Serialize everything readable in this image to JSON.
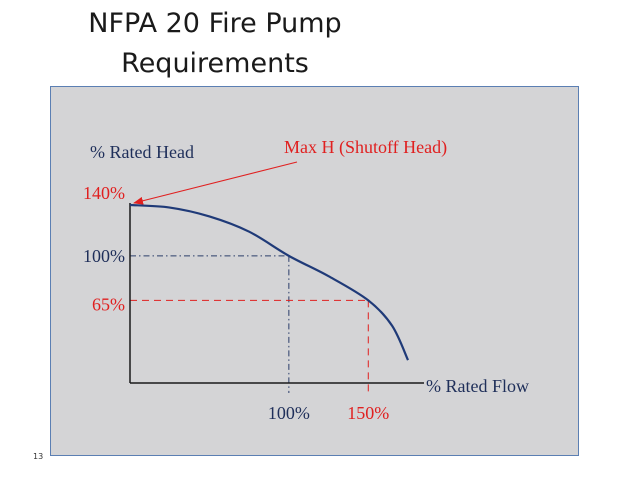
{
  "slide": {
    "title_line1": "NFPA 20 Fire Pump",
    "title_line2": "Requirements",
    "number": "13"
  },
  "colors": {
    "panel_bg": "#d4d4d6",
    "panel_border": "#5b7fb3",
    "curve": "#1f3a78",
    "axis": "#1a1a1a",
    "red": "#e02020",
    "navy_text": "#1f2f5a",
    "guide": "#2a3d6a"
  },
  "chart_data": {
    "type": "line",
    "title": "",
    "xlabel": "% Rated Flow",
    "ylabel": "% Rated Head",
    "annotation": "Max  H (Shutoff Head)",
    "y_tick_labels": [
      {
        "label": "140%",
        "value": 140,
        "color": "red"
      },
      {
        "label": "100%",
        "value": 100,
        "color": "navy"
      },
      {
        "label": "65%",
        "value": 65,
        "color": "red"
      }
    ],
    "x_tick_labels": [
      {
        "label": "100%",
        "value": 100,
        "color": "navy"
      },
      {
        "label": "150%",
        "value": 150,
        "color": "red"
      }
    ],
    "series": [
      {
        "points": [
          {
            "x": 0,
            "y": 140
          },
          {
            "x": 25,
            "y": 138
          },
          {
            "x": 50,
            "y": 131
          },
          {
            "x": 75,
            "y": 119
          },
          {
            "x": 100,
            "y": 100
          },
          {
            "x": 125,
            "y": 84
          },
          {
            "x": 150,
            "y": 65
          },
          {
            "x": 165,
            "y": 45
          },
          {
            "x": 175,
            "y": 18
          }
        ]
      }
    ],
    "reference_points": [
      {
        "x": 100,
        "y": 100,
        "style": "dash-dot",
        "color": "navy"
      },
      {
        "x": 150,
        "y": 65,
        "style": "dashed",
        "color": "red"
      }
    ],
    "xlim": [
      0,
      175
    ],
    "ylim": [
      0,
      140
    ],
    "grid": false
  }
}
